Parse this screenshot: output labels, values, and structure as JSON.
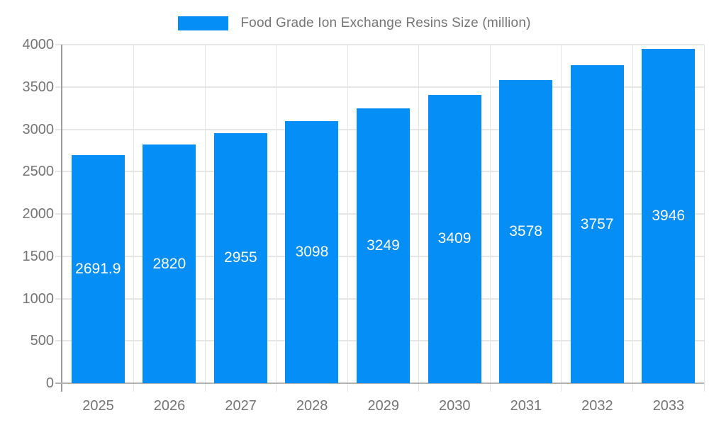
{
  "chart_data": {
    "type": "bar",
    "title": "Food Grade Ion Exchange Resins Size (million)",
    "legend": {
      "position": "top",
      "entries": [
        "Food Grade Ion Exchange Resins Size (million)"
      ]
    },
    "categories": [
      "2025",
      "2026",
      "2027",
      "2028",
      "2029",
      "2030",
      "2031",
      "2032",
      "2033"
    ],
    "series": [
      {
        "name": "Food Grade Ion Exchange Resins Size (million)",
        "values": [
          2691.9,
          2820,
          2955,
          3098,
          3249,
          3409,
          3578,
          3757,
          3946
        ]
      }
    ],
    "value_labels": [
      "2691.9",
      "2820",
      "2955",
      "3098",
      "3249",
      "3409",
      "3578",
      "3757",
      "3946"
    ],
    "xlabel": "",
    "ylabel": "",
    "ylim": [
      0,
      4000
    ],
    "y_ticks": [
      0,
      500,
      1000,
      1500,
      2000,
      2500,
      3000,
      3500,
      4000
    ],
    "grid": true,
    "colors": {
      "bar": "#058ef5",
      "value_label": "#ffffff",
      "axis_text": "#757575",
      "legend_text": "#757575",
      "gridline": "#e6e6e6",
      "vertical_gridline": "#e3e3e3",
      "axis_line": "#999999",
      "baseline": "#b3b3b3"
    }
  }
}
